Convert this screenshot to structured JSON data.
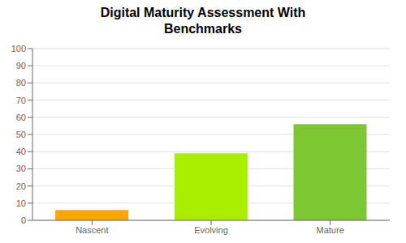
{
  "chart_data": {
    "type": "bar",
    "title": "Digital Maturity Assessment With\nBenchmarks",
    "categories": [
      "Nascent",
      "Evolving",
      "Mature"
    ],
    "values": [
      6,
      39,
      56
    ],
    "colors": [
      "#FFA500",
      "#AAEE00",
      "#7DC832"
    ],
    "ylim": [
      0,
      100
    ],
    "yticks": [
      0,
      10,
      20,
      30,
      40,
      50,
      60,
      70,
      80,
      90,
      100
    ],
    "grid": true
  }
}
